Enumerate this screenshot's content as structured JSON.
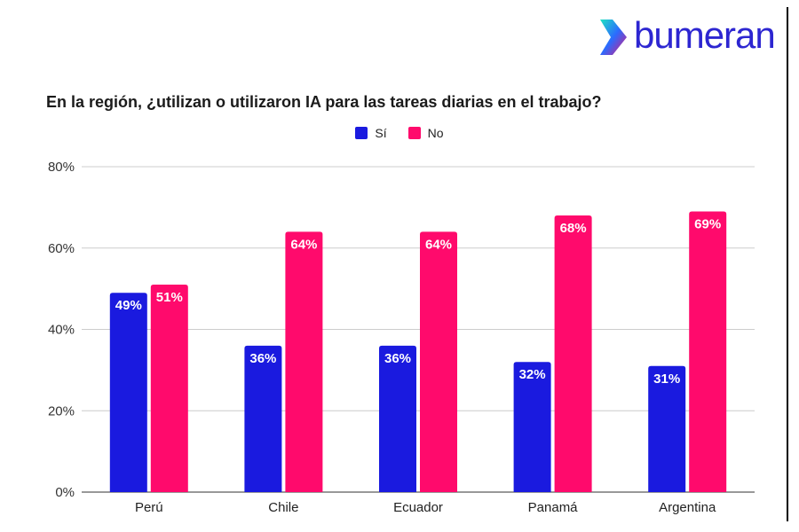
{
  "brand": {
    "name": "bumeran",
    "name_color": "#2d26d1",
    "mark_colors": [
      "#1de3c2",
      "#2b6bff",
      "#e3157a"
    ]
  },
  "chart_data": {
    "type": "bar",
    "title": "En la región, ¿utilizan o utilizaron IA para las tareas diarias en el trabajo?",
    "categories": [
      "Perú",
      "Chile",
      "Ecuador",
      "Panamá",
      "Argentina"
    ],
    "series": [
      {
        "name": "Sí",
        "color": "#1a1adf",
        "values": [
          49,
          36,
          36,
          32,
          31
        ],
        "labels": [
          "49%",
          "36%",
          "36%",
          "32%",
          "31%"
        ]
      },
      {
        "name": "No",
        "color": "#ff0a6c",
        "values": [
          51,
          64,
          64,
          68,
          69
        ],
        "labels": [
          "51%",
          "64%",
          "64%",
          "68%",
          "69%"
        ]
      }
    ],
    "ylim": [
      0,
      80
    ],
    "yticks": [
      0,
      20,
      40,
      60,
      80
    ],
    "ytick_labels": [
      "0%",
      "20%",
      "40%",
      "60%",
      "80%"
    ],
    "grid": true,
    "legend_position": "top-center",
    "xlabel": "",
    "ylabel": ""
  }
}
